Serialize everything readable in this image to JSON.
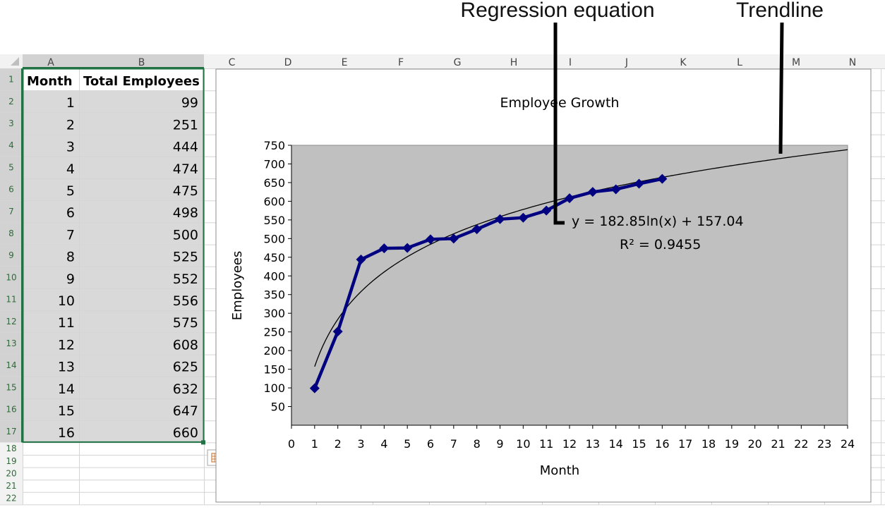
{
  "callouts": {
    "regression_label": "Regression equation",
    "trendline_label": "Trendline"
  },
  "sheet": {
    "columns": [
      "A",
      "B",
      "C",
      "D",
      "E",
      "F",
      "G",
      "H",
      "I",
      "J",
      "K",
      "L",
      "M",
      "N"
    ],
    "rows": [
      "1",
      "2",
      "3",
      "4",
      "5",
      "6",
      "7",
      "8",
      "9",
      "10",
      "11",
      "12",
      "13",
      "14",
      "15",
      "16",
      "17",
      "18",
      "19",
      "20",
      "21",
      "22"
    ],
    "header": {
      "month": "Month",
      "total_employees": "Total Employees"
    },
    "table": [
      [
        "1",
        "99"
      ],
      [
        "2",
        "251"
      ],
      [
        "3",
        "444"
      ],
      [
        "4",
        "474"
      ],
      [
        "5",
        "475"
      ],
      [
        "6",
        "498"
      ],
      [
        "7",
        "500"
      ],
      [
        "8",
        "525"
      ],
      [
        "9",
        "552"
      ],
      [
        "10",
        "556"
      ],
      [
        "11",
        "575"
      ],
      [
        "12",
        "608"
      ],
      [
        "13",
        "625"
      ],
      [
        "14",
        "632"
      ],
      [
        "15",
        "647"
      ],
      [
        "16",
        "660"
      ]
    ],
    "colors": {
      "grid": "#d4d4d4",
      "header_bg": "#f2f2f2",
      "selected_header_bg": "#d2d2d2",
      "selection_border": "#217346",
      "selected_cells": "#d9d9d9"
    }
  },
  "chart_data": {
    "type": "line",
    "title": "Employee Growth",
    "xlabel": "Month",
    "ylabel": "Employees",
    "x": [
      1,
      2,
      3,
      4,
      5,
      6,
      7,
      8,
      9,
      10,
      11,
      12,
      13,
      14,
      15,
      16
    ],
    "series": [
      {
        "values": [
          99,
          251,
          444,
          474,
          475,
          498,
          500,
          525,
          552,
          556,
          575,
          608,
          625,
          632,
          647,
          660
        ],
        "color": "#000080",
        "marker": "diamond"
      }
    ],
    "trendline": {
      "type": "logarithmic",
      "a": 182.85,
      "b": 157.04,
      "x_from": 1,
      "x_to": 24,
      "color": "#000000"
    },
    "equation": "y = 182.85ln(x) + 157.04",
    "r_squared": "R² = 0.9455",
    "xlim": [
      0,
      24
    ],
    "ylim": [
      0,
      750
    ],
    "xticks": [
      "0",
      "1",
      "2",
      "3",
      "4",
      "5",
      "6",
      "7",
      "8",
      "9",
      "10",
      "11",
      "12",
      "13",
      "14",
      "15",
      "16",
      "17",
      "18",
      "19",
      "20",
      "21",
      "22",
      "23",
      "24"
    ],
    "yticks": [
      "50",
      "100",
      "150",
      "200",
      "250",
      "300",
      "350",
      "400",
      "450",
      "500",
      "550",
      "600",
      "650",
      "700",
      "750"
    ],
    "plot_bg": "#c0c0c0",
    "grid": false,
    "legend": "none"
  }
}
